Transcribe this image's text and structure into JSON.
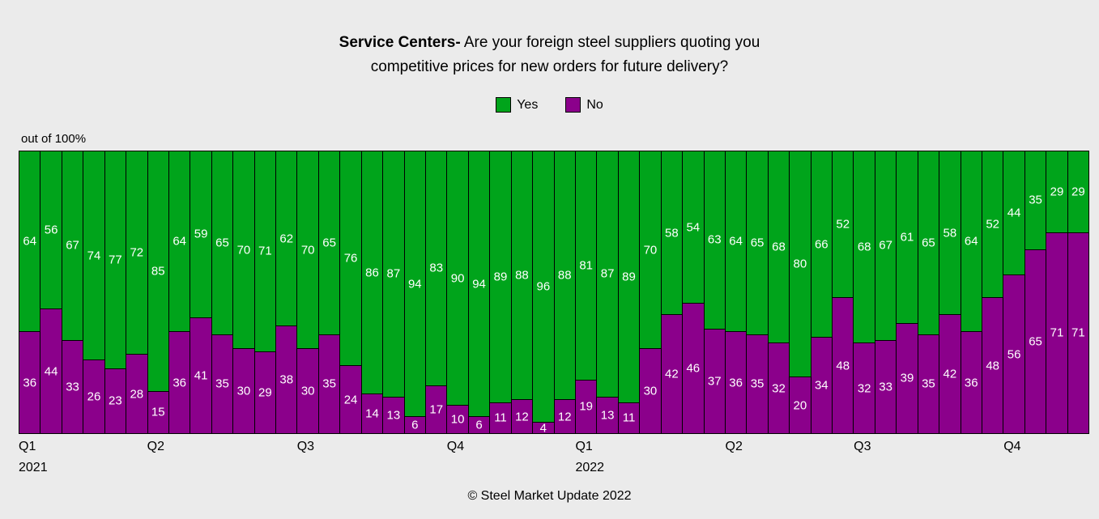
{
  "title": {
    "prefix": "Service Centers-",
    "line1_rest": " Are your foreign steel suppliers quoting you",
    "line2": "competitive prices for new orders for future delivery?"
  },
  "legend": [
    {
      "label": "Yes",
      "color": "#00a41b"
    },
    {
      "label": "No",
      "color": "#8b008b"
    }
  ],
  "axis_note": "out of 100%",
  "footer": "© Steel Market Update 2022",
  "colors": {
    "yes": "#00a41b",
    "no": "#8b008b",
    "bar_border": "#000000",
    "background": "#ebebeb",
    "label_text": "#ffffff"
  },
  "chart_data": {
    "type": "bar",
    "stacked": true,
    "unit": "percent",
    "ylim": [
      0,
      100
    ],
    "grid": false,
    "legend_position": "top-center",
    "series": [
      {
        "name": "Yes",
        "color": "#00a41b",
        "values": [
          64,
          56,
          67,
          74,
          77,
          72,
          85,
          64,
          59,
          65,
          70,
          71,
          62,
          70,
          65,
          76,
          86,
          87,
          94,
          83,
          90,
          94,
          89,
          88,
          96,
          88,
          81,
          87,
          89,
          70,
          58,
          54,
          63,
          64,
          65,
          68,
          80,
          66,
          52,
          68,
          67,
          61,
          65,
          58,
          64,
          52,
          44,
          35,
          29,
          29
        ]
      },
      {
        "name": "No",
        "color": "#8b008b",
        "values": [
          36,
          44,
          33,
          26,
          23,
          28,
          15,
          36,
          41,
          35,
          30,
          29,
          38,
          30,
          35,
          24,
          14,
          13,
          6,
          17,
          10,
          6,
          11,
          12,
          4,
          12,
          19,
          13,
          11,
          30,
          42,
          46,
          37,
          36,
          35,
          32,
          20,
          34,
          48,
          32,
          33,
          39,
          35,
          42,
          36,
          48,
          56,
          65,
          71,
          71
        ]
      }
    ],
    "x_axis_ticks": [
      {
        "label": "Q1",
        "sub": "2021",
        "bar_index": 0
      },
      {
        "label": "Q2",
        "sub": "",
        "bar_index": 6
      },
      {
        "label": "Q3",
        "sub": "",
        "bar_index": 13
      },
      {
        "label": "Q4",
        "sub": "",
        "bar_index": 20
      },
      {
        "label": "Q1",
        "sub": "2022",
        "bar_index": 26
      },
      {
        "label": "Q2",
        "sub": "",
        "bar_index": 33
      },
      {
        "label": "Q3",
        "sub": "",
        "bar_index": 39
      },
      {
        "label": "Q4",
        "sub": "",
        "bar_index": 46
      }
    ]
  }
}
